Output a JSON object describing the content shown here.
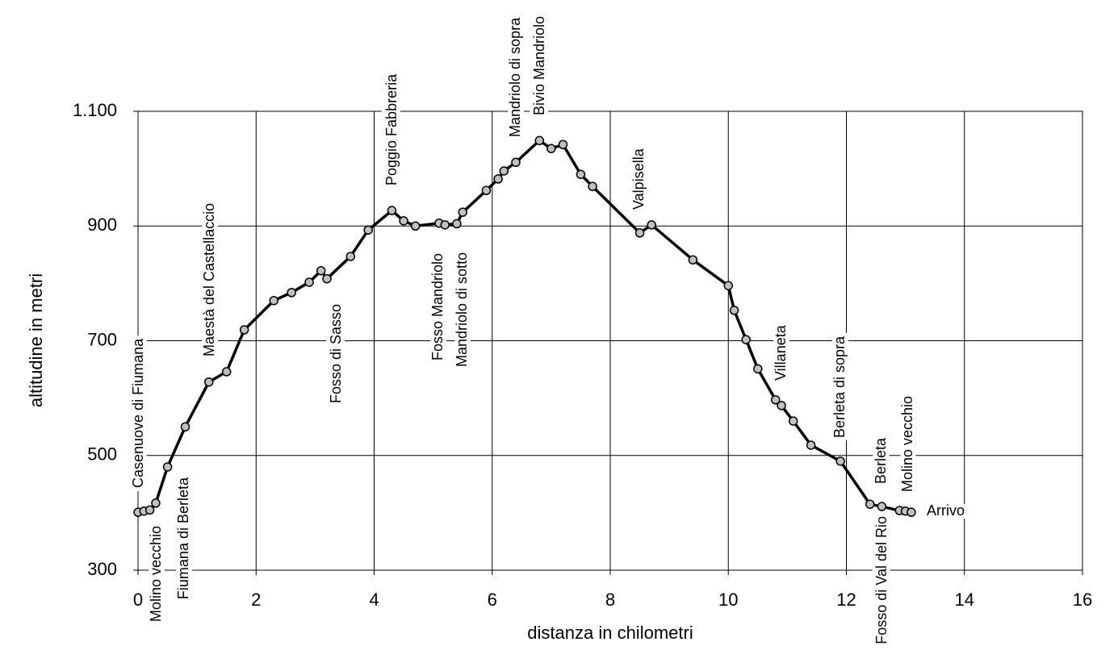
{
  "chart_data": {
    "type": "line",
    "xlabel": "distanza in chilometri",
    "ylabel": "altitudine  in metri",
    "x": [
      0,
      0.1,
      0.2,
      0.3,
      0.5,
      0.8,
      1.2,
      1.5,
      1.8,
      2.3,
      2.6,
      2.9,
      3.1,
      3.2,
      3.6,
      3.9,
      4.3,
      4.5,
      4.7,
      5.1,
      5.2,
      5.4,
      5.5,
      5.9,
      6.1,
      6.2,
      6.4,
      6.8,
      7.0,
      7.2,
      7.5,
      7.7,
      8.5,
      8.7,
      9.4,
      10.0,
      10.1,
      10.3,
      10.5,
      10.8,
      10.9,
      11.1,
      11.4,
      11.9,
      12.4,
      12.6,
      12.9,
      13.0,
      13.1
    ],
    "values": [
      401,
      403,
      405,
      417,
      480,
      550,
      628,
      646,
      719,
      770,
      784,
      802,
      822,
      808,
      847,
      893,
      927,
      909,
      900,
      905,
      902,
      904,
      924,
      962,
      982,
      996,
      1011,
      1049,
      1035,
      1042,
      990,
      969,
      888,
      902,
      841,
      796,
      753,
      702,
      651,
      597,
      587,
      560,
      518,
      490,
      415,
      411,
      404,
      403,
      401
    ],
    "color": "#000000",
    "marker_color": "#c0c0c0",
    "xlim": [
      0,
      16
    ],
    "ylim": [
      300,
      1100
    ],
    "xticks": [
      0,
      2,
      4,
      6,
      8,
      10,
      12,
      14,
      16
    ],
    "yticks": [
      300,
      500,
      700,
      900,
      {
        "value": 1100,
        "label": "1.100"
      }
    ],
    "grid": true,
    "annotations": [
      "Casenuove di Fiumana",
      "Molino vecchio",
      "Fiumana di Berleta",
      "Maestà del Castellaccio",
      "Fosso di Sasso",
      "Poggio Fabbreria",
      "Fosso Mandriolo",
      "Mandriolo di sotto",
      "Mandriolo di sopra",
      "Bivio Mandriolo",
      "Valpisella",
      "Villaneta",
      "Berleta di sopra",
      "Fosso di Val del Rio",
      "Berleta",
      "Molino vecchio",
      "Arrivo"
    ]
  }
}
